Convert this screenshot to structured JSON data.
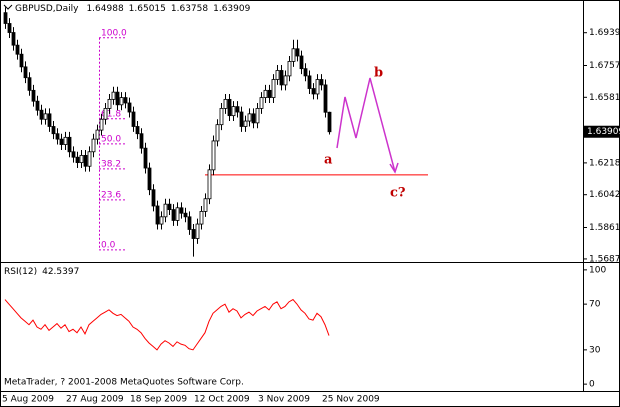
{
  "chart_data": [
    {
      "type": "candlestick",
      "title": "GBPUSD,Daily",
      "categories": [
        "5 Aug 2009",
        null,
        null,
        null,
        null,
        null,
        null,
        null,
        null,
        null,
        null,
        null,
        null,
        null,
        null,
        null,
        "27 Aug 2009",
        null,
        null,
        null,
        null,
        null,
        null,
        null,
        null,
        null,
        null,
        null,
        null,
        null,
        null,
        null,
        "18 Sep 2009",
        null,
        null,
        null,
        null,
        null,
        null,
        null,
        null,
        null,
        null,
        null,
        null,
        null,
        null,
        null,
        "12 Oct 2009",
        null,
        null,
        null,
        null,
        null,
        null,
        null,
        null,
        null,
        null,
        null,
        null,
        null,
        null,
        null,
        "3 Nov 2009",
        null,
        null,
        null,
        null,
        null,
        null,
        null,
        null,
        null,
        null,
        null,
        null,
        null,
        null,
        null,
        "25 Nov 2009",
        null
      ],
      "open": [
        1.705,
        1.699,
        1.694,
        1.687,
        1.682,
        1.675,
        1.669,
        1.662,
        1.656,
        1.651,
        1.646,
        1.649,
        1.642,
        1.638,
        1.635,
        1.632,
        1.636,
        1.628,
        1.625,
        1.622,
        1.626,
        1.62,
        1.628,
        1.635,
        1.64,
        1.646,
        1.652,
        1.657,
        1.661,
        1.654,
        1.658,
        1.655,
        1.65,
        1.642,
        1.638,
        1.63,
        1.619,
        1.607,
        1.598,
        1.588,
        1.592,
        1.599,
        1.596,
        1.59,
        1.597,
        1.594,
        1.592,
        1.585,
        1.58,
        1.588,
        1.595,
        1.602,
        1.618,
        1.634,
        1.643,
        1.652,
        1.657,
        1.648,
        1.653,
        1.65,
        1.642,
        1.645,
        1.649,
        1.644,
        1.652,
        1.658,
        1.662,
        1.658,
        1.668,
        1.673,
        1.665,
        1.67,
        1.678,
        1.685,
        1.681,
        1.674,
        1.67,
        1.663,
        1.66,
        1.668,
        1.665,
        1.64988
      ],
      "high": [
        1.708,
        1.702,
        1.697,
        1.69,
        1.685,
        1.678,
        1.672,
        1.665,
        1.659,
        1.654,
        1.652,
        1.652,
        1.645,
        1.641,
        1.638,
        1.639,
        1.639,
        1.631,
        1.628,
        1.629,
        1.629,
        1.631,
        1.638,
        1.643,
        1.649,
        1.655,
        1.66,
        1.664,
        1.664,
        1.661,
        1.661,
        1.658,
        1.653,
        1.645,
        1.641,
        1.633,
        1.622,
        1.61,
        1.601,
        1.595,
        1.602,
        1.602,
        1.599,
        1.6,
        1.6,
        1.597,
        1.595,
        1.588,
        1.591,
        1.598,
        1.605,
        1.621,
        1.637,
        1.646,
        1.655,
        1.66,
        1.66,
        1.656,
        1.656,
        1.653,
        1.648,
        1.652,
        1.652,
        1.655,
        1.661,
        1.665,
        1.665,
        1.671,
        1.676,
        1.676,
        1.673,
        1.681,
        1.69,
        1.69,
        1.684,
        1.677,
        1.673,
        1.666,
        1.671,
        1.671,
        1.668,
        1.65015
      ],
      "low": [
        1.696,
        1.691,
        1.684,
        1.679,
        1.672,
        1.666,
        1.659,
        1.653,
        1.648,
        1.643,
        1.643,
        1.639,
        1.635,
        1.632,
        1.629,
        1.629,
        1.625,
        1.622,
        1.619,
        1.619,
        1.617,
        1.617,
        1.625,
        1.632,
        1.637,
        1.643,
        1.649,
        1.654,
        1.651,
        1.651,
        1.652,
        1.647,
        1.639,
        1.635,
        1.627,
        1.616,
        1.604,
        1.595,
        1.585,
        1.585,
        1.589,
        1.593,
        1.587,
        1.587,
        1.591,
        1.589,
        1.582,
        1.57,
        1.577,
        1.585,
        1.592,
        1.599,
        1.615,
        1.631,
        1.64,
        1.649,
        1.645,
        1.645,
        1.647,
        1.639,
        1.639,
        1.642,
        1.641,
        1.641,
        1.649,
        1.655,
        1.655,
        1.655,
        1.665,
        1.662,
        1.662,
        1.667,
        1.675,
        1.678,
        1.671,
        1.667,
        1.66,
        1.657,
        1.657,
        1.662,
        1.647,
        1.63758
      ],
      "close": [
        1.699,
        1.694,
        1.687,
        1.682,
        1.675,
        1.669,
        1.662,
        1.656,
        1.651,
        1.646,
        1.649,
        1.642,
        1.638,
        1.635,
        1.632,
        1.636,
        1.628,
        1.625,
        1.622,
        1.626,
        1.62,
        1.628,
        1.635,
        1.64,
        1.646,
        1.652,
        1.657,
        1.661,
        1.654,
        1.658,
        1.655,
        1.65,
        1.642,
        1.638,
        1.63,
        1.619,
        1.607,
        1.598,
        1.588,
        1.592,
        1.599,
        1.596,
        1.59,
        1.597,
        1.594,
        1.592,
        1.585,
        1.58,
        1.588,
        1.595,
        1.602,
        1.618,
        1.634,
        1.643,
        1.652,
        1.657,
        1.648,
        1.653,
        1.65,
        1.642,
        1.645,
        1.649,
        1.644,
        1.652,
        1.658,
        1.662,
        1.658,
        1.668,
        1.673,
        1.665,
        1.67,
        1.678,
        1.685,
        1.681,
        1.674,
        1.67,
        1.663,
        1.66,
        1.668,
        1.665,
        1.64988,
        1.63909
      ],
      "up_color": "#ffffff",
      "down_color": "#000000",
      "ylim": [
        1.567,
        1.712
      ],
      "yticks": [
        {
          "value": 1.6939,
          "label": "1.69390"
        },
        1.67575,
        1.65815,
        1.62185,
        1.60425,
        {
          "value": 1.5861,
          "label": "1.58610"
        },
        {
          "value": 1.5687,
          "label": "1.56870"
        }
      ],
      "fib": {
        "high": 1.6911,
        "low": 1.5737,
        "color": "#cc00cc",
        "levels": [
          {
            "value": 100,
            "label": "100.0"
          },
          61.8,
          {
            "value": 50,
            "label": "50.0"
          },
          38.2,
          23.6,
          {
            "value": 0,
            "label": "0.0"
          }
        ]
      },
      "hline": 1.6152,
      "hline_color": "#ff0000",
      "annotations": [
        "a",
        "b",
        "c?"
      ]
    },
    {
      "type": "line",
      "title": "RSI(12)",
      "color": "#ff0000",
      "values": [
        74,
        70,
        66,
        62,
        58,
        55,
        52,
        56,
        50,
        48,
        52,
        47,
        50,
        53,
        49,
        52,
        46,
        48,
        45,
        50,
        44,
        52,
        55,
        58,
        61,
        63,
        65,
        62,
        60,
        61,
        58,
        55,
        50,
        48,
        45,
        40,
        36,
        33,
        30,
        35,
        38,
        36,
        33,
        37,
        35,
        34,
        31,
        30,
        35,
        40,
        45,
        55,
        62,
        65,
        68,
        70,
        63,
        66,
        64,
        58,
        61,
        63,
        60,
        64,
        66,
        68,
        65,
        70,
        72,
        66,
        68,
        72,
        74,
        70,
        65,
        62,
        57,
        56,
        62,
        59,
        52,
        42.5397
      ],
      "ylim": [
        -6,
        106
      ],
      "yticks": [
        100,
        70,
        30,
        0
      ]
    }
  ],
  "copyright": "MetaTrader, ? 2001-2008 MetaQuotes Software Corp."
}
